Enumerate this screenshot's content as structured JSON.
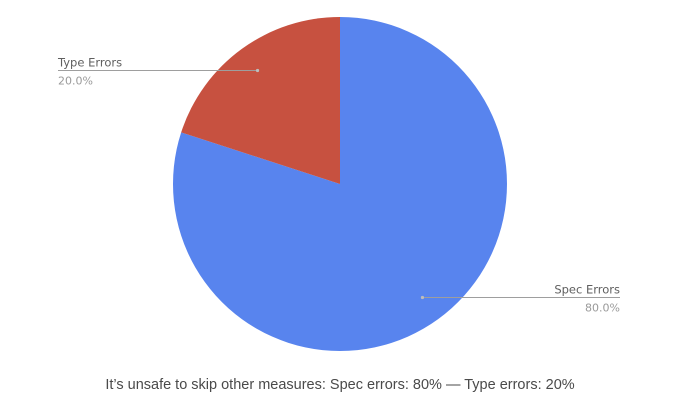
{
  "chart_data": {
    "type": "pie",
    "start_angle_deg": 0,
    "direction": "clockwise",
    "slices": [
      {
        "name": "Spec Errors",
        "value": 80,
        "label": "80.0%",
        "color": "#5884ee"
      },
      {
        "name": "Type Errors",
        "value": 20,
        "label": "20.0%",
        "color": "#c75140"
      }
    ]
  },
  "caption": "It’s unsafe to skip other measures: Spec errors: 80% — Type errors: 20%"
}
